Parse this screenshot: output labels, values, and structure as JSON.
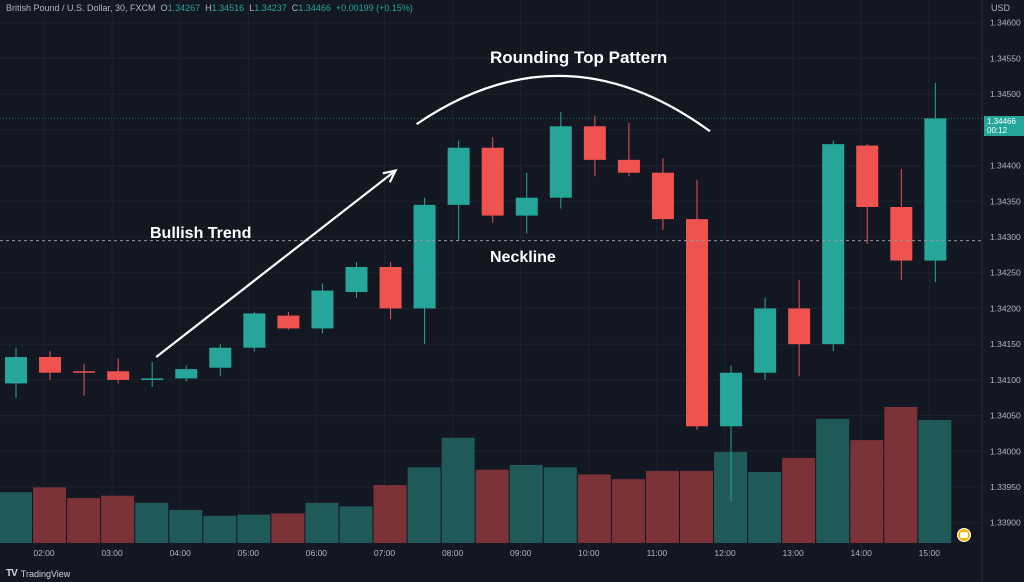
{
  "header": {
    "symbol": "British Pound / U.S. Dollar, 30, FXCM",
    "o_label": "O",
    "o_value": "1.34267",
    "h_label": "H",
    "h_value": "1.34516",
    "l_label": "L",
    "l_value": "1.34237",
    "c_label": "C",
    "c_value": "1.34466",
    "change": "+0.00199 (+0.15%)"
  },
  "currency": "USD",
  "last_price": {
    "value": "1.34466",
    "countdown": "00:12"
  },
  "brand": "TradingView",
  "annotations": {
    "rounding_top": "Rounding Top Pattern",
    "bullish_trend": "Bullish Trend",
    "neckline": "Neckline"
  },
  "colors": {
    "up": "#26a69a",
    "down": "#ef5350",
    "vol_up": "#1f5a58",
    "vol_down": "#7b3237",
    "bg": "#131722"
  },
  "chart_data": {
    "type": "candlestick",
    "y_ticks": [
      1.339,
      1.3395,
      1.34,
      1.3405,
      1.341,
      1.3415,
      1.342,
      1.3425,
      1.343,
      1.3435,
      1.344,
      1.3445,
      1.345,
      1.3455,
      1.346
    ],
    "ylim": [
      1.3388,
      1.34615
    ],
    "x_labels": [
      "02:00",
      "03:00",
      "04:00",
      "05:00",
      "06:00",
      "07:00",
      "08:00",
      "09:00",
      "10:00",
      "11:00",
      "12:00",
      "13:00",
      "14:00",
      "15:00"
    ],
    "neckline": 1.34295,
    "candles": [
      {
        "o": 1.34095,
        "h": 1.34145,
        "l": 1.34075,
        "c": 1.34132,
        "v": 4.3
      },
      {
        "o": 1.34132,
        "h": 1.3414,
        "l": 1.341,
        "c": 1.3411,
        "v": 4.7
      },
      {
        "o": 1.34112,
        "h": 1.34122,
        "l": 1.34078,
        "c": 1.3411,
        "v": 3.8
      },
      {
        "o": 1.34112,
        "h": 1.3413,
        "l": 1.34095,
        "c": 1.341,
        "v": 4.0
      },
      {
        "o": 1.341,
        "h": 1.34125,
        "l": 1.3409,
        "c": 1.34102,
        "v": 3.4
      },
      {
        "o": 1.34102,
        "h": 1.3412,
        "l": 1.34098,
        "c": 1.34115,
        "v": 2.8
      },
      {
        "o": 1.34117,
        "h": 1.3415,
        "l": 1.34105,
        "c": 1.34145,
        "v": 2.3
      },
      {
        "o": 1.34145,
        "h": 1.34195,
        "l": 1.3414,
        "c": 1.34193,
        "v": 2.4
      },
      {
        "o": 1.3419,
        "h": 1.34195,
        "l": 1.3417,
        "c": 1.34172,
        "v": 2.5
      },
      {
        "o": 1.34172,
        "h": 1.34235,
        "l": 1.34165,
        "c": 1.34225,
        "v": 3.4
      },
      {
        "o": 1.34223,
        "h": 1.34265,
        "l": 1.34215,
        "c": 1.34258,
        "v": 3.1
      },
      {
        "o": 1.34258,
        "h": 1.34265,
        "l": 1.34185,
        "c": 1.342,
        "v": 4.9
      },
      {
        "o": 1.342,
        "h": 1.34355,
        "l": 1.3415,
        "c": 1.34345,
        "v": 6.4
      },
      {
        "o": 1.34345,
        "h": 1.34435,
        "l": 1.34295,
        "c": 1.34425,
        "v": 8.9
      },
      {
        "o": 1.34425,
        "h": 1.3444,
        "l": 1.3432,
        "c": 1.3433,
        "v": 6.2
      },
      {
        "o": 1.3433,
        "h": 1.3439,
        "l": 1.34305,
        "c": 1.34355,
        "v": 6.6
      },
      {
        "o": 1.34355,
        "h": 1.34475,
        "l": 1.3434,
        "c": 1.34455,
        "v": 6.4
      },
      {
        "o": 1.34455,
        "h": 1.3447,
        "l": 1.34385,
        "c": 1.34408,
        "v": 5.8
      },
      {
        "o": 1.34408,
        "h": 1.3446,
        "l": 1.34385,
        "c": 1.3439,
        "v": 5.4
      },
      {
        "o": 1.3439,
        "h": 1.3441,
        "l": 1.3431,
        "c": 1.34325,
        "v": 6.1
      },
      {
        "o": 1.34325,
        "h": 1.3438,
        "l": 1.3403,
        "c": 1.34035,
        "v": 6.1
      },
      {
        "o": 1.34035,
        "h": 1.3412,
        "l": 1.3393,
        "c": 1.3411,
        "v": 7.7
      },
      {
        "o": 1.3411,
        "h": 1.34215,
        "l": 1.341,
        "c": 1.342,
        "v": 6.0
      },
      {
        "o": 1.342,
        "h": 1.3424,
        "l": 1.34105,
        "c": 1.3415,
        "v": 7.2
      },
      {
        "o": 1.3415,
        "h": 1.34435,
        "l": 1.3414,
        "c": 1.3443,
        "v": 10.5
      },
      {
        "o": 1.34428,
        "h": 1.3443,
        "l": 1.3429,
        "c": 1.34342,
        "v": 8.7
      },
      {
        "o": 1.34342,
        "h": 1.34395,
        "l": 1.3424,
        "c": 1.34267,
        "v": 11.5
      },
      {
        "o": 1.34267,
        "h": 1.34516,
        "l": 1.34237,
        "c": 1.34466,
        "v": 10.4
      }
    ]
  }
}
